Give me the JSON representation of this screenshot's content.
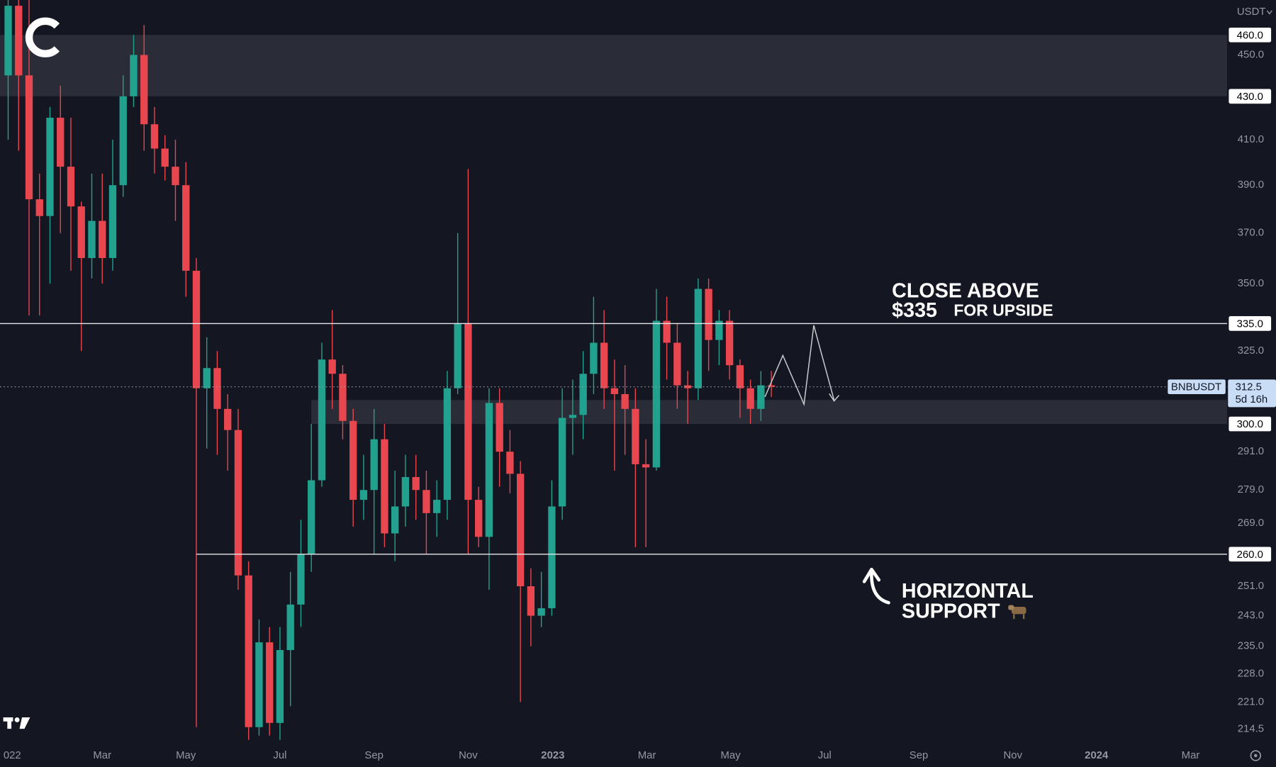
{
  "chart_data": {
    "type": "candlestick",
    "currency": "USDT",
    "log_scale": true,
    "colors": {
      "up": "#22a28e",
      "down": "#e8474f",
      "background": "#141722",
      "zone": "#2e313b",
      "annotation_green": "#5fa34f"
    },
    "x": [
      0,
      1,
      2,
      3,
      4,
      5,
      6,
      7,
      8,
      9,
      10,
      11,
      12,
      13,
      14,
      15,
      16,
      17,
      18,
      19,
      20,
      21,
      22,
      23,
      24,
      25,
      26,
      27,
      28,
      29,
      30,
      31,
      32,
      33,
      34,
      35,
      36,
      37,
      38,
      39,
      40,
      41,
      42,
      43,
      44,
      45,
      46,
      47,
      48,
      49,
      50,
      51,
      52,
      53,
      54,
      55,
      56,
      57,
      58,
      59,
      60,
      61,
      62,
      63,
      64,
      65,
      66,
      67,
      68,
      69,
      70,
      71,
      72,
      73
    ],
    "open": [
      440,
      475,
      440,
      384,
      377,
      420,
      398,
      381,
      360,
      375,
      360,
      390,
      430,
      450,
      417,
      406,
      398,
      390,
      355,
      312,
      319,
      305,
      298,
      254,
      215,
      236,
      216,
      234,
      246,
      260,
      282,
      322,
      317,
      301,
      276,
      279,
      295,
      266,
      274,
      283,
      279,
      272,
      276,
      312,
      335,
      276,
      265,
      307,
      291,
      284,
      251,
      243,
      245,
      274,
      302,
      303,
      317,
      328,
      312,
      310,
      305,
      287,
      286,
      336,
      328,
      313,
      312,
      348,
      329,
      336,
      320,
      312,
      305,
      313
    ],
    "high": [
      490,
      490,
      480,
      395,
      425,
      435,
      420,
      383,
      395,
      395,
      410,
      440,
      460,
      465,
      425,
      412,
      410,
      400,
      360,
      330,
      325,
      310,
      305,
      258,
      242,
      240,
      240,
      255,
      270,
      300,
      328,
      340,
      320,
      305,
      290,
      305,
      300,
      285,
      290,
      290,
      285,
      282,
      318,
      370,
      397,
      280,
      312,
      312,
      298,
      288,
      256,
      255,
      282,
      312,
      315,
      325,
      345,
      340,
      322,
      320,
      312,
      295,
      348,
      345,
      335,
      318,
      352,
      352,
      340,
      340,
      322,
      315,
      318,
      318
    ],
    "low": [
      410,
      405,
      338,
      338,
      350,
      370,
      355,
      325,
      352,
      350,
      355,
      385,
      425,
      405,
      395,
      392,
      375,
      345,
      215,
      292,
      290,
      285,
      250,
      212,
      213,
      213,
      212,
      220,
      240,
      255,
      280,
      305,
      295,
      268,
      270,
      260,
      262,
      258,
      268,
      270,
      260,
      265,
      270,
      310,
      260,
      262,
      250,
      280,
      278,
      221,
      235,
      240,
      243,
      270,
      290,
      295,
      310,
      305,
      285,
      290,
      262,
      262,
      285,
      315,
      305,
      300,
      308,
      318,
      320,
      315,
      302,
      300,
      301,
      309
    ],
    "close": [
      475,
      440,
      384,
      377,
      420,
      398,
      381,
      360,
      375,
      360,
      390,
      430,
      450,
      417,
      406,
      398,
      390,
      355,
      312,
      319,
      305,
      298,
      254,
      215,
      236,
      216,
      234,
      246,
      260,
      282,
      322,
      317,
      301,
      276,
      279,
      295,
      266,
      274,
      283,
      279,
      272,
      276,
      312,
      335,
      276,
      265,
      307,
      291,
      284,
      251,
      243,
      245,
      274,
      302,
      303,
      317,
      328,
      312,
      310,
      305,
      287,
      286,
      336,
      328,
      313,
      312,
      348,
      329,
      336,
      320,
      312,
      305,
      313,
      312.5
    ],
    "xlim": [
      -0.78,
      116.6
    ],
    "ylim": [
      211,
      478
    ],
    "xticks": [
      {
        "value": 0.39,
        "label": "022"
      },
      {
        "value": 9.0,
        "label": "Mar"
      },
      {
        "value": 17.0,
        "label": "May"
      },
      {
        "value": 26.0,
        "label": "Jul"
      },
      {
        "value": 35.0,
        "label": "Sep"
      },
      {
        "value": 44.0,
        "label": "Nov"
      },
      {
        "value": 52.1,
        "label": "2023"
      },
      {
        "value": 61.1,
        "label": "Mar"
      },
      {
        "value": 69.1,
        "label": "May"
      },
      {
        "value": 78.1,
        "label": "Jul"
      },
      {
        "value": 87.1,
        "label": "Sep"
      },
      {
        "value": 96.1,
        "label": "Nov"
      },
      {
        "value": 104.1,
        "label": "2024"
      },
      {
        "value": 113.1,
        "label": "Mar"
      }
    ],
    "yticks": [
      {
        "value": 450,
        "label": "450.0"
      },
      {
        "value": 410,
        "label": "410.0"
      },
      {
        "value": 390,
        "label": "390.0"
      },
      {
        "value": 370,
        "label": "370.0"
      },
      {
        "value": 350,
        "label": "350.0"
      },
      {
        "value": 325,
        "label": "325.0"
      },
      {
        "value": 291,
        "label": "291.0"
      },
      {
        "value": 279,
        "label": "279.0"
      },
      {
        "value": 269,
        "label": "269.0"
      },
      {
        "value": 251,
        "label": "251.0"
      },
      {
        "value": 243,
        "label": "243.0"
      },
      {
        "value": 235,
        "label": "235.0"
      },
      {
        "value": 228,
        "label": "228.0"
      },
      {
        "value": 221,
        "label": "221.0"
      },
      {
        "value": 214.5,
        "label": "214.5"
      }
    ],
    "levels": [
      {
        "value": 460,
        "label": "460.0"
      },
      {
        "value": 430,
        "label": "430.0"
      },
      {
        "value": 335,
        "label": "335.0"
      },
      {
        "value": 300,
        "label": "300.0"
      },
      {
        "value": 260,
        "label": "260.0"
      }
    ],
    "zones": [
      {
        "low": 430,
        "high": 460
      },
      {
        "low": 300,
        "high": 308,
        "from": 29
      }
    ],
    "hlines": [
      {
        "value": 335
      },
      {
        "value": 260,
        "from": 18
      }
    ],
    "last_price": {
      "symbol": "BNBUSDT",
      "value": 312.5,
      "label": "312.5",
      "countdown": "5d 16h"
    },
    "annotations": {
      "upside": {
        "line1": "CLOSE ABOVE",
        "price": "$335",
        "rest": "FOR UPSIDE"
      },
      "support": {
        "line1": "HORIZONTAL",
        "line2": "SUPPORT"
      }
    }
  }
}
